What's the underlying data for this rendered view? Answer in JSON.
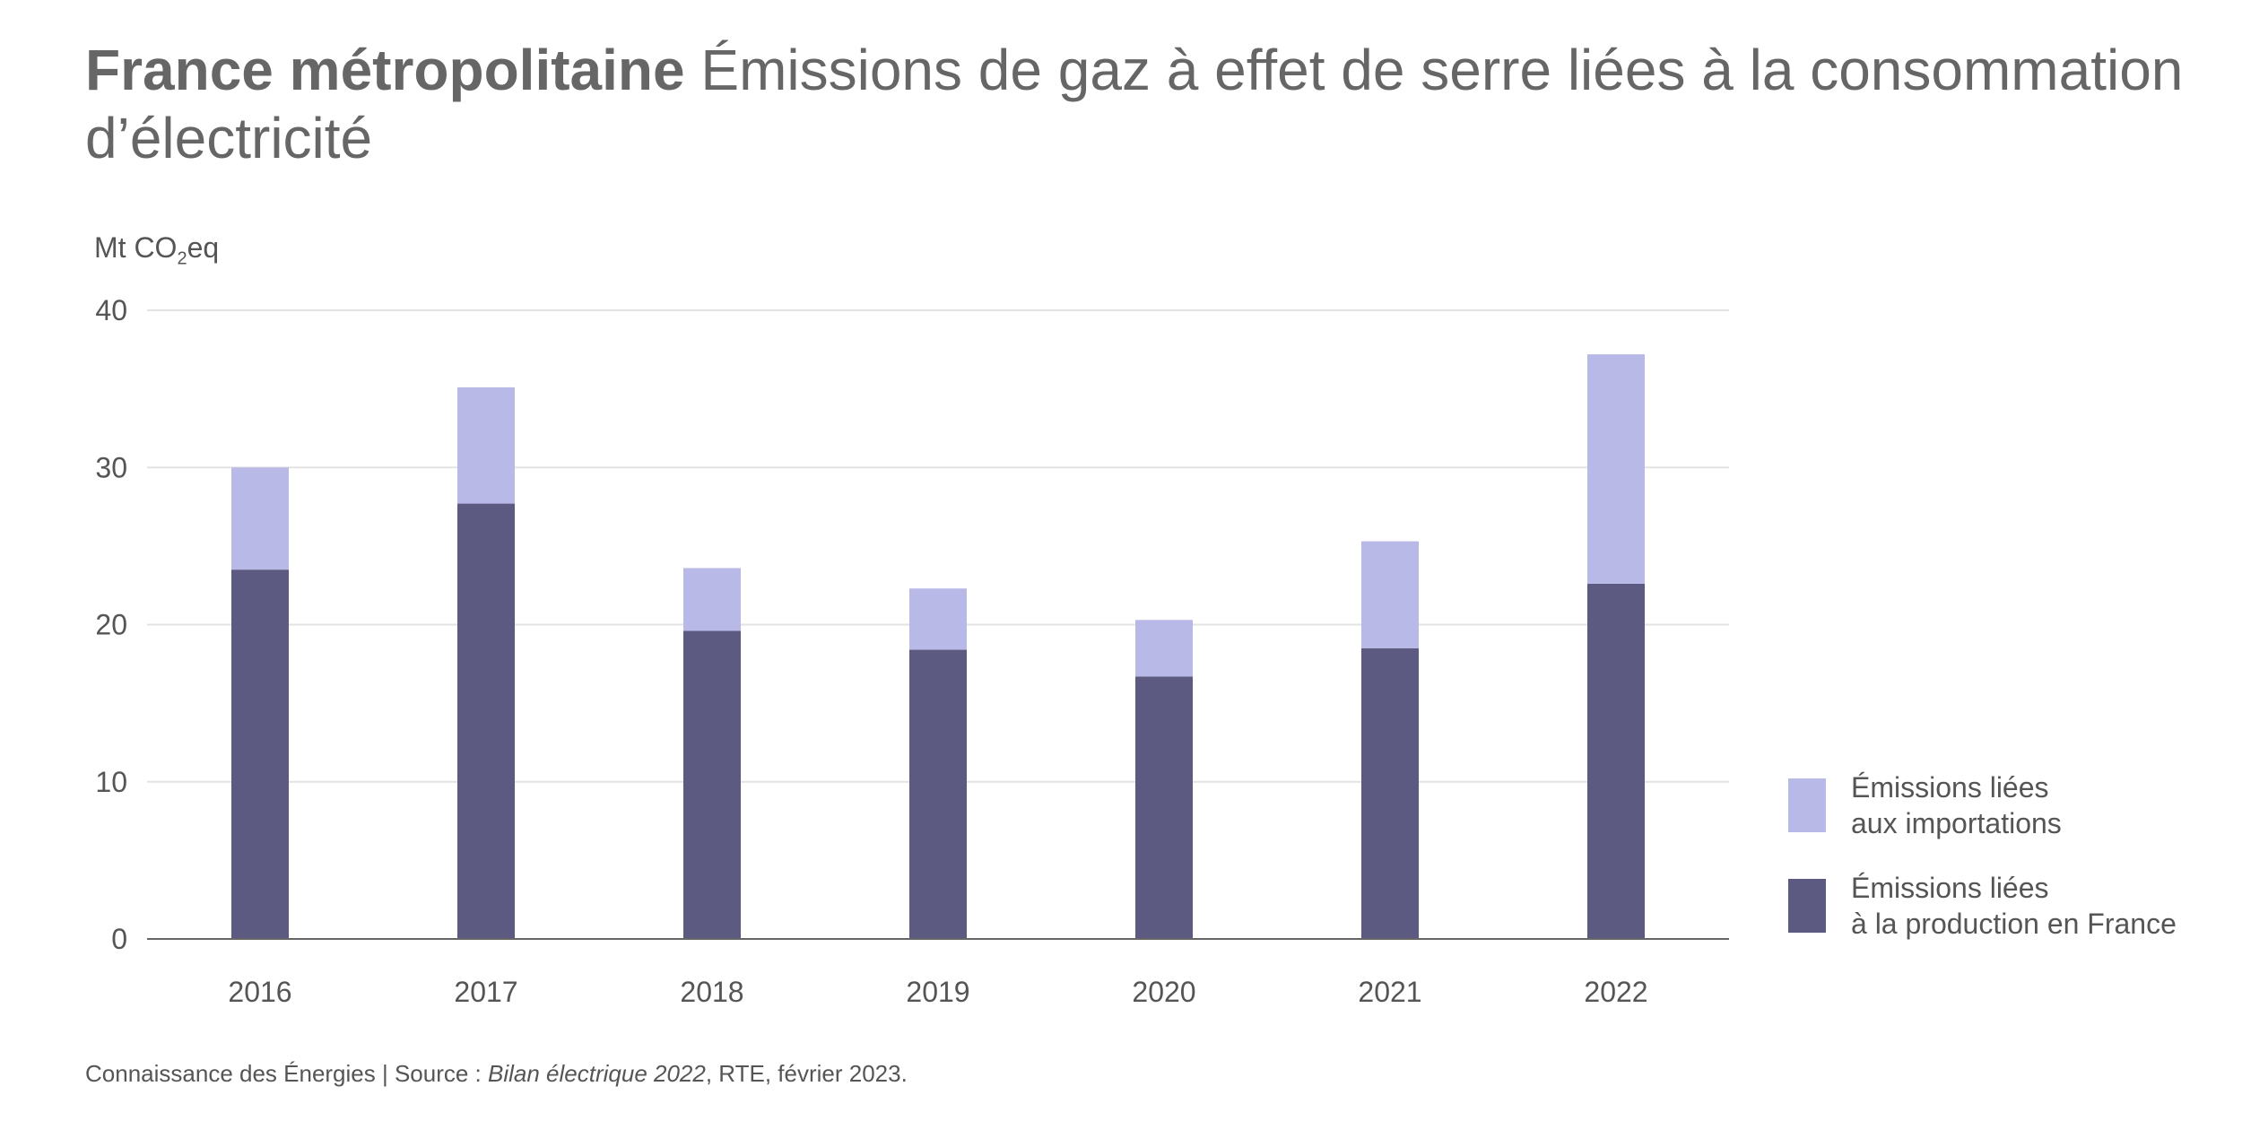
{
  "chart_data": {
    "type": "stacked_bar",
    "title_bold": "France métropolitaine",
    "title": "Émissions de gaz à effet de serre liées à la consommation d’électricité",
    "y_label": {
      "prefix": "Mt CO",
      "sub": "2",
      "suffix": "eq"
    },
    "categories": [
      "2016",
      "2017",
      "2018",
      "2019",
      "2020",
      "2021",
      "2022"
    ],
    "series": [
      {
        "name": "Émissions liées\nà la production en France",
        "color": "#5c5a80",
        "values": [
          23.5,
          27.7,
          19.6,
          18.4,
          16.7,
          18.5,
          22.6
        ]
      },
      {
        "name": "Émissions liées\naux importations",
        "color": "#b9b9e8",
        "values": [
          6.5,
          7.4,
          4.0,
          3.9,
          3.6,
          6.8,
          14.6
        ]
      }
    ],
    "ylim": [
      0,
      40
    ],
    "yticks": [
      0,
      10,
      20,
      30,
      40
    ],
    "grid": true,
    "source": {
      "text": "Connaissance des Énergies | Source : ",
      "italic": "Bilan électrique 2022",
      "end": ", RTE, février 2023."
    }
  }
}
